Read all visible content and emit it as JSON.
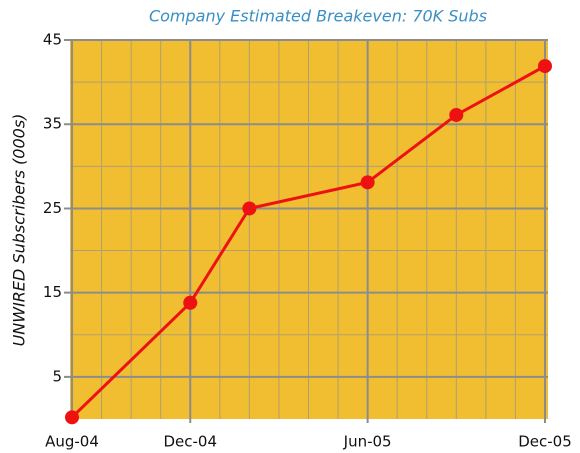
{
  "chart_data": {
    "type": "line",
    "title": "Company Estimated Breakeven: 70K Subs",
    "y_label": "UNWIRED Subscribers (000s)",
    "series": [
      {
        "name": "Subscribers",
        "color": "#ee1111",
        "x": [
          0,
          4,
          6,
          10,
          13,
          16
        ],
        "values": [
          0.2,
          13.8,
          25,
          28.1,
          36.1,
          41.9
        ]
      }
    ],
    "xlim": [
      0,
      16
    ],
    "xticks": [
      {
        "value": 0,
        "label": "Aug-04"
      },
      {
        "value": 4,
        "label": "Dec-04"
      },
      {
        "value": 10,
        "label": "Jun-05"
      },
      {
        "value": 16,
        "label": "Dec-05"
      }
    ],
    "x_minor_ticks": [
      1,
      2,
      3,
      5,
      6,
      7,
      8,
      9,
      11,
      12,
      13,
      14,
      15
    ],
    "ylim": [
      0,
      45
    ],
    "yticks": [
      5,
      15,
      25,
      35,
      45
    ],
    "y_minor_ticks": [
      10,
      20,
      30,
      40
    ],
    "grid": true
  }
}
